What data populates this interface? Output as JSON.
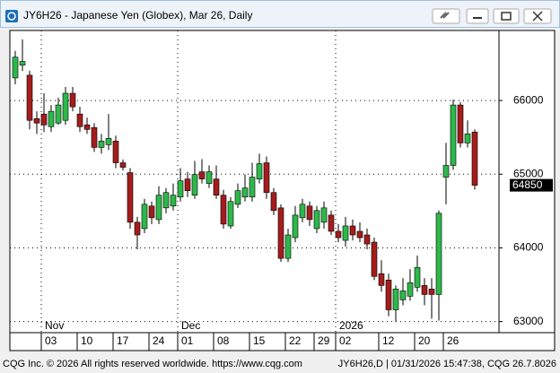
{
  "window": {
    "title": "JY6H26 - Japanese Yen (Globex), Mar 26, Daily"
  },
  "chart_data": {
    "type": "candlestick",
    "categories": [
      null,
      null,
      null,
      null,
      "03",
      null,
      null,
      null,
      null,
      "10",
      null,
      null,
      null,
      null,
      "17",
      null,
      null,
      null,
      null,
      "24",
      null,
      null,
      null,
      "01",
      null,
      null,
      null,
      null,
      "08",
      null,
      null,
      null,
      null,
      "15",
      null,
      null,
      null,
      null,
      "22",
      null,
      null,
      null,
      "29",
      null,
      null,
      "02",
      null,
      null,
      null,
      null,
      null,
      "12",
      null,
      null,
      null,
      null,
      "20",
      null,
      null,
      null,
      "26",
      null,
      null,
      null,
      null
    ],
    "month_labels": [
      null,
      null,
      null,
      null,
      "Nov",
      null,
      null,
      null,
      null,
      null,
      null,
      null,
      null,
      null,
      null,
      null,
      null,
      null,
      null,
      null,
      null,
      null,
      null,
      "Dec",
      null,
      null,
      null,
      null,
      null,
      null,
      null,
      null,
      null,
      null,
      null,
      null,
      null,
      null,
      null,
      null,
      null,
      null,
      null,
      null,
      null,
      "2026",
      null,
      null,
      null,
      null,
      null,
      null,
      null,
      null,
      null,
      null,
      null,
      null,
      null,
      null,
      null,
      null,
      null,
      null,
      null
    ],
    "open": [
      66306,
      66480,
      66343,
      65755,
      65816,
      65645,
      65694,
      65731,
      66098,
      65816,
      65670,
      65633,
      65363,
      65400,
      65449,
      65155,
      65021,
      64348,
      64262,
      64568,
      64384,
      64543,
      64568,
      64690,
      64935,
      64715,
      65033,
      64874,
      64935,
      64715,
      64298,
      64592,
      64690,
      64690,
      64935,
      65155,
      64751,
      64543,
      63858,
      64139,
      64409,
      64568,
      64262,
      64348,
      64445,
      64225,
      64102,
      64298,
      64225,
      64176,
      64078,
      63650,
      63564,
      63160,
      63295,
      63344,
      63466,
      63490,
      63442,
      63368,
      64960,
      65119,
      65939,
      65424,
      65572
    ],
    "high": [
      66673,
      66830,
      66404,
      65853,
      66098,
      65939,
      66037,
      66184,
      66184,
      65914,
      65767,
      65694,
      65547,
      65816,
      65523,
      65200,
      65082,
      64421,
      64666,
      64629,
      64837,
      64813,
      64874,
      65082,
      65033,
      65180,
      65204,
      65119,
      65119,
      64788,
      64690,
      64874,
      64996,
      65155,
      65278,
      65241,
      64813,
      64592,
      64262,
      64568,
      64666,
      64629,
      64568,
      64629,
      64507,
      64323,
      64421,
      64384,
      64347,
      64262,
      64139,
      63833,
      63650,
      63490,
      63589,
      63711,
      63895,
      63589,
      63589,
      64507,
      65424,
      66012,
      65976,
      65731,
      65608
    ],
    "low": [
      66220,
      66400,
      65608,
      65547,
      65572,
      65572,
      65670,
      65670,
      65853,
      65572,
      65547,
      65302,
      65278,
      65327,
      65082,
      65050,
      64262,
      63980,
      64201,
      64323,
      64323,
      64470,
      64507,
      64629,
      64690,
      64666,
      64874,
      64813,
      64666,
      64262,
      64262,
      64543,
      64629,
      64629,
      64874,
      64666,
      64445,
      63809,
      63809,
      64078,
      64348,
      64298,
      64201,
      64262,
      64176,
      64078,
      64017,
      64102,
      64078,
      63980,
      63564,
      63405,
      63074,
      63001,
      63222,
      63283,
      63405,
      63222,
      63038,
      63014,
      64592,
      65058,
      65363,
      65363,
      64790
    ],
    "close": [
      66588,
      66530,
      65731,
      65694,
      65669,
      65853,
      65939,
      66098,
      65914,
      65645,
      65608,
      65363,
      65449,
      65486,
      65155,
      65094,
      64348,
      64176,
      64592,
      64409,
      64715,
      64751,
      64715,
      64911,
      64776,
      64996,
      64935,
      65033,
      64715,
      64323,
      64629,
      64776,
      64813,
      64960,
      65143,
      64751,
      64507,
      63858,
      64176,
      64445,
      64592,
      64384,
      64507,
      64543,
      64225,
      64139,
      64298,
      64176,
      64139,
      64053,
      63613,
      63490,
      63160,
      63442,
      63417,
      63527,
      63735,
      63368,
      63368,
      64470,
      65119,
      65939,
      65424,
      65547,
      64850
    ],
    "up_color": "#2eb84b",
    "down_color": "#a51c1c",
    "ylim": [
      62850,
      66950
    ],
    "yticks": [
      63000,
      64000,
      65000,
      66000
    ],
    "grid": true,
    "last_price": 64850
  },
  "status_bar": {
    "left": "CQG Inc. © 2026 All rights reserved worldwide. https://www.cqg.com",
    "right": "JY6H26,D | 01/31/2026 15:47:38, CQG 26.7.8026"
  }
}
